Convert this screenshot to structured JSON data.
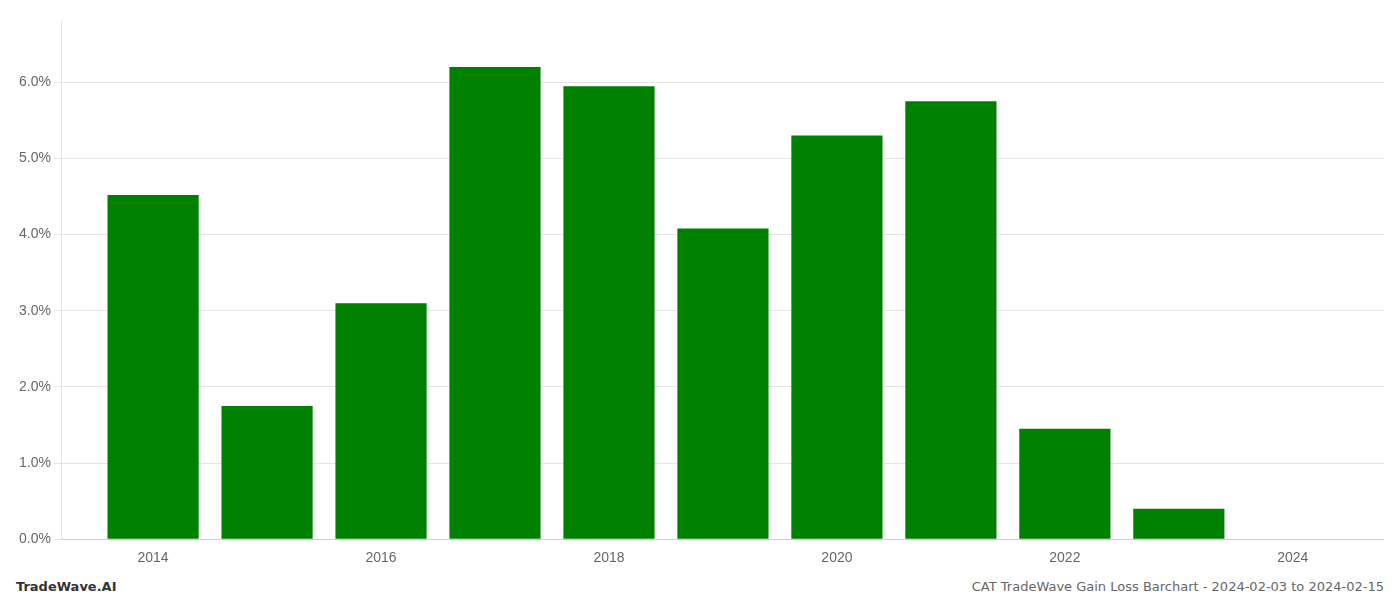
{
  "chart_data": {
    "type": "bar",
    "x": [
      2014,
      2015,
      2016,
      2017,
      2018,
      2019,
      2020,
      2021,
      2022,
      2023
    ],
    "values": [
      0.0452,
      0.0175,
      0.031,
      0.062,
      0.0595,
      0.0408,
      0.053,
      0.0575,
      0.0145,
      0.004
    ],
    "color": "#008000",
    "xlim": [
      2013.2,
      2024.8
    ],
    "xticks": [
      2014,
      2016,
      2018,
      2020,
      2022,
      2024
    ],
    "ylim": [
      0,
      0.068
    ],
    "yticks": [
      {
        "value": 0.0,
        "label": "0.0%"
      },
      {
        "value": 0.01,
        "label": "1.0%"
      },
      {
        "value": 0.02,
        "label": "2.0%"
      },
      {
        "value": 0.03,
        "label": "3.0%"
      },
      {
        "value": 0.04,
        "label": "4.0%"
      },
      {
        "value": 0.05,
        "label": "5.0%"
      },
      {
        "value": 0.06,
        "label": "6.0%"
      }
    ],
    "grid": true,
    "annotations": [
      "TradeWave.AI",
      "CAT TradeWave Gain Loss Barchart - 2024-02-03 to 2024-02-15"
    ]
  }
}
